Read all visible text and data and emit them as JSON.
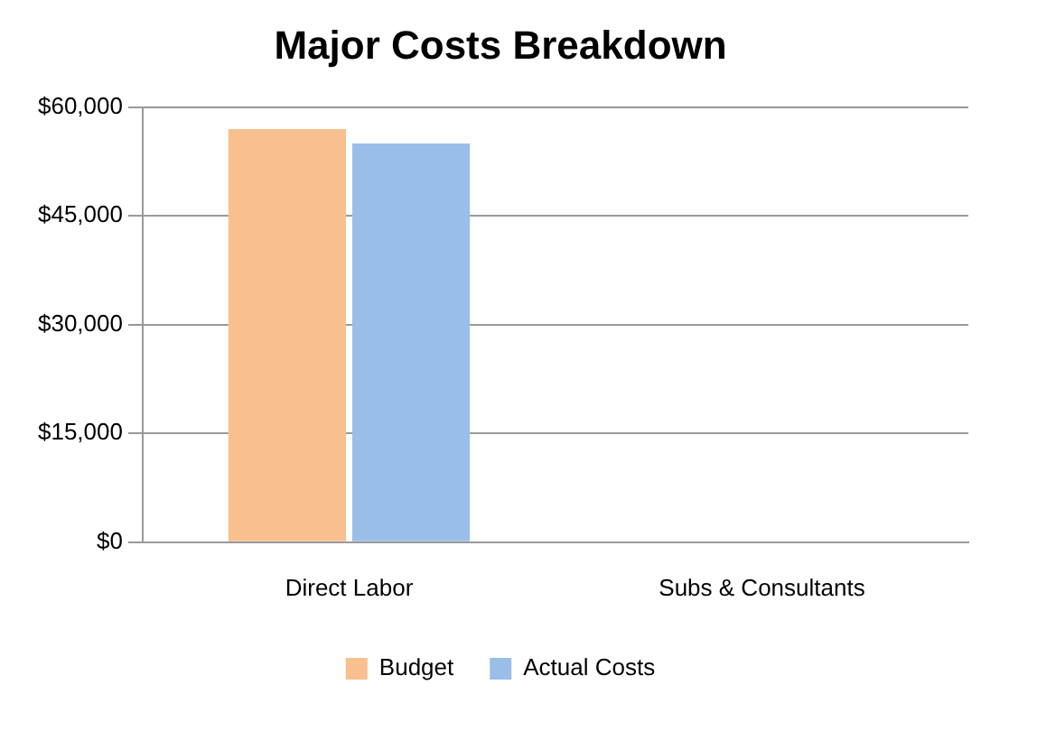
{
  "chart_data": {
    "type": "bar",
    "title": "Major Costs Breakdown",
    "categories": [
      "Direct Labor",
      "Subs & Consultants"
    ],
    "series": [
      {
        "name": "Budget",
        "color": "#f9c08f",
        "values": [
          57000,
          0
        ]
      },
      {
        "name": "Actual Costs",
        "color": "#99bfe8",
        "values": [
          55000,
          0
        ]
      }
    ],
    "ylim": [
      0,
      60000
    ],
    "yticks": [
      {
        "value": 0,
        "label": "$0"
      },
      {
        "value": 15000,
        "label": "$15,000"
      },
      {
        "value": 30000,
        "label": "$30,000"
      },
      {
        "value": 45000,
        "label": "$45,000"
      },
      {
        "value": 60000,
        "label": "$60,000"
      }
    ],
    "grid": "y",
    "legend": "bottom"
  }
}
